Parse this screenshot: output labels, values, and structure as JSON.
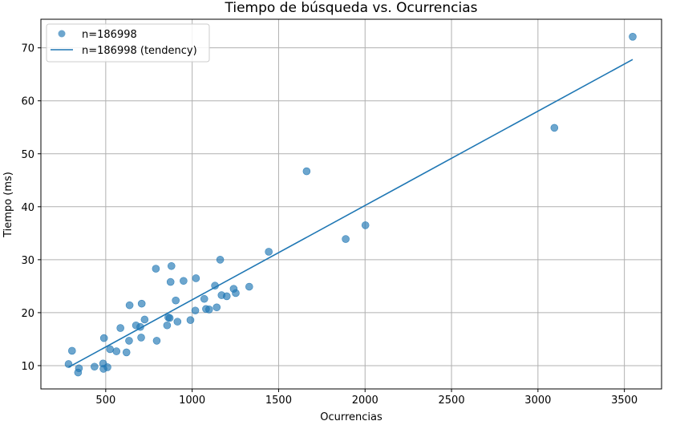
{
  "chart_data": {
    "type": "scatter",
    "title": "Tiempo de búsqueda vs. Ocurrencias",
    "xlabel": "Ocurrencias",
    "ylabel": "Tiempo (ms)",
    "xlim": [
      125,
      3715
    ],
    "ylim": [
      5.6,
      75.4
    ],
    "xticks": [
      500,
      1000,
      1500,
      2000,
      2500,
      3000,
      3500
    ],
    "yticks": [
      10,
      20,
      30,
      40,
      50,
      60,
      70
    ],
    "grid": true,
    "legend_position": "top-left",
    "series": [
      {
        "name": "n=186998",
        "kind": "scatter",
        "color": "#1f77b4",
        "points": [
          [
            285,
            10.3
          ],
          [
            305,
            12.8
          ],
          [
            340,
            8.7
          ],
          [
            345,
            9.5
          ],
          [
            435,
            9.8
          ],
          [
            485,
            10.4
          ],
          [
            487,
            9.4
          ],
          [
            490,
            15.2
          ],
          [
            510,
            9.7
          ],
          [
            525,
            13.1
          ],
          [
            562,
            12.7
          ],
          [
            585,
            17.1
          ],
          [
            620,
            12.5
          ],
          [
            635,
            14.7
          ],
          [
            638,
            21.4
          ],
          [
            675,
            17.6
          ],
          [
            700,
            17.3
          ],
          [
            705,
            15.3
          ],
          [
            708,
            21.7
          ],
          [
            725,
            18.7
          ],
          [
            790,
            28.3
          ],
          [
            795,
            14.7
          ],
          [
            855,
            17.6
          ],
          [
            862,
            19.1
          ],
          [
            870,
            19.0
          ],
          [
            875,
            25.8
          ],
          [
            880,
            28.8
          ],
          [
            905,
            22.3
          ],
          [
            915,
            18.3
          ],
          [
            950,
            26.0
          ],
          [
            990,
            18.6
          ],
          [
            1018,
            20.4
          ],
          [
            1022,
            26.5
          ],
          [
            1070,
            22.6
          ],
          [
            1080,
            20.7
          ],
          [
            1098,
            20.6
          ],
          [
            1132,
            25.1
          ],
          [
            1142,
            21.0
          ],
          [
            1162,
            30.0
          ],
          [
            1170,
            23.3
          ],
          [
            1200,
            23.1
          ],
          [
            1240,
            24.5
          ],
          [
            1252,
            23.7
          ],
          [
            1330,
            24.9
          ],
          [
            1443,
            31.5
          ],
          [
            1662,
            46.7
          ],
          [
            1888,
            33.9
          ],
          [
            2002,
            36.5
          ],
          [
            3095,
            54.9
          ],
          [
            3548,
            72.1
          ]
        ]
      },
      {
        "name": "n=186998 (tendency)",
        "kind": "line",
        "color": "#1f77b4",
        "x": [
          285,
          3548
        ],
        "y": [
          9.7,
          67.8
        ]
      }
    ]
  }
}
